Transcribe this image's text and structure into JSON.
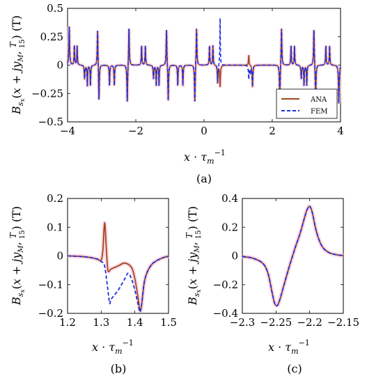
{
  "colors": {
    "ana": "#a0461e",
    "fem": "#1a2ee0",
    "ana_halo": "#f6c8d8"
  },
  "chart_data": [
    {
      "id": "a",
      "type": "line",
      "caption": "(a)",
      "xlabel": "x · τ_m^-1",
      "ylabel": "B_sx(x + jy_M, T/15) (T)",
      "xlim": [
        -4,
        4
      ],
      "ylim": [
        -0.5,
        0.5
      ],
      "xticks": [
        "-4",
        "-2",
        "0",
        "2",
        "4"
      ],
      "yticks": [
        "-0.5",
        "-0.25",
        "0",
        "0.25",
        "0.5"
      ],
      "legend": {
        "position": "bottom-right",
        "entries": [
          "ANA",
          "FEM"
        ]
      },
      "ana_spikes": [
        {
          "x": -3.95,
          "a": 0.34,
          "w": 0.012
        },
        {
          "x": -3.8,
          "a": 0.17,
          "w": 0.01
        },
        {
          "x": -3.72,
          "a": 0.17,
          "w": 0.01
        },
        {
          "x": -3.5,
          "a": -0.12,
          "w": 0.012
        },
        {
          "x": -3.42,
          "a": -0.18,
          "w": 0.01
        },
        {
          "x": -3.33,
          "a": -0.18,
          "w": 0.01
        },
        {
          "x": -3.12,
          "a": 0.33,
          "w": 0.012
        },
        {
          "x": -3.08,
          "a": -0.33,
          "w": 0.012
        },
        {
          "x": -2.77,
          "a": -0.18,
          "w": 0.01
        },
        {
          "x": -2.63,
          "a": -0.18,
          "w": 0.01
        },
        {
          "x": -2.25,
          "a": -0.34,
          "w": 0.012
        },
        {
          "x": -2.2,
          "a": 0.34,
          "w": 0.012
        },
        {
          "x": -1.83,
          "a": 0.17,
          "w": 0.01
        },
        {
          "x": -1.72,
          "a": 0.17,
          "w": 0.01
        },
        {
          "x": -1.48,
          "a": -0.12,
          "w": 0.012
        },
        {
          "x": -1.4,
          "a": -0.18,
          "w": 0.01
        },
        {
          "x": -1.32,
          "a": -0.18,
          "w": 0.01
        },
        {
          "x": -1.1,
          "a": 0.33,
          "w": 0.012
        },
        {
          "x": -1.05,
          "a": -0.33,
          "w": 0.012
        },
        {
          "x": -0.77,
          "a": -0.18,
          "w": 0.01
        },
        {
          "x": -0.62,
          "a": -0.18,
          "w": 0.01
        },
        {
          "x": -0.27,
          "a": -0.34,
          "w": 0.012
        },
        {
          "x": -0.22,
          "a": 0.34,
          "w": 0.012
        },
        {
          "x": 0.16,
          "a": 0.17,
          "w": 0.01
        },
        {
          "x": 0.26,
          "a": 0.17,
          "w": 0.01
        },
        {
          "x": 0.4,
          "a": -0.16,
          "w": 0.012
        },
        {
          "x": 0.47,
          "a": -0.19,
          "w": 0.012
        },
        {
          "x": 1.31,
          "a": 0.09,
          "w": 0.01
        },
        {
          "x": 1.42,
          "a": -0.19,
          "w": 0.012
        },
        {
          "x": 2.22,
          "a": -0.34,
          "w": 0.012
        },
        {
          "x": 2.27,
          "a": 0.34,
          "w": 0.012
        },
        {
          "x": 2.55,
          "a": 0.17,
          "w": 0.01
        },
        {
          "x": 2.65,
          "a": 0.17,
          "w": 0.01
        },
        {
          "x": 2.85,
          "a": -0.12,
          "w": 0.012
        },
        {
          "x": 2.93,
          "a": -0.18,
          "w": 0.01
        },
        {
          "x": 3.01,
          "a": -0.18,
          "w": 0.01
        },
        {
          "x": 3.22,
          "a": 0.33,
          "w": 0.012
        },
        {
          "x": 3.27,
          "a": -0.33,
          "w": 0.012
        },
        {
          "x": 3.57,
          "a": 0.17,
          "w": 0.01
        },
        {
          "x": 3.68,
          "a": 0.17,
          "w": 0.01
        },
        {
          "x": 3.95,
          "a": -0.34,
          "w": 0.012
        }
      ],
      "fem_spikes": [
        {
          "x": -3.95,
          "a": 0.34,
          "w": 0.012
        },
        {
          "x": -3.8,
          "a": 0.17,
          "w": 0.01
        },
        {
          "x": -3.72,
          "a": 0.17,
          "w": 0.01
        },
        {
          "x": -3.5,
          "a": -0.12,
          "w": 0.012
        },
        {
          "x": -3.42,
          "a": -0.18,
          "w": 0.01
        },
        {
          "x": -3.33,
          "a": -0.18,
          "w": 0.01
        },
        {
          "x": -3.12,
          "a": 0.33,
          "w": 0.012
        },
        {
          "x": -3.08,
          "a": -0.33,
          "w": 0.012
        },
        {
          "x": -2.77,
          "a": -0.18,
          "w": 0.01
        },
        {
          "x": -2.63,
          "a": -0.18,
          "w": 0.01
        },
        {
          "x": -2.25,
          "a": -0.34,
          "w": 0.012
        },
        {
          "x": -2.2,
          "a": 0.34,
          "w": 0.012
        },
        {
          "x": -1.83,
          "a": 0.17,
          "w": 0.01
        },
        {
          "x": -1.72,
          "a": 0.17,
          "w": 0.01
        },
        {
          "x": -1.48,
          "a": -0.12,
          "w": 0.012
        },
        {
          "x": -1.4,
          "a": -0.18,
          "w": 0.01
        },
        {
          "x": -1.32,
          "a": -0.18,
          "w": 0.01
        },
        {
          "x": -1.1,
          "a": 0.33,
          "w": 0.012
        },
        {
          "x": -1.05,
          "a": -0.33,
          "w": 0.012
        },
        {
          "x": -0.77,
          "a": -0.18,
          "w": 0.01
        },
        {
          "x": -0.62,
          "a": -0.18,
          "w": 0.01
        },
        {
          "x": -0.27,
          "a": -0.34,
          "w": 0.012
        },
        {
          "x": -0.22,
          "a": 0.34,
          "w": 0.012
        },
        {
          "x": 0.16,
          "a": 0.17,
          "w": 0.01
        },
        {
          "x": 0.26,
          "a": 0.17,
          "w": 0.01
        },
        {
          "x": 0.4,
          "a": -0.16,
          "w": 0.012
        },
        {
          "x": 0.47,
          "a": 0.42,
          "w": 0.008
        },
        {
          "x": 1.31,
          "a": -0.12,
          "w": 0.012
        },
        {
          "x": 1.36,
          "a": -0.07,
          "w": 0.012
        },
        {
          "x": 1.42,
          "a": -0.19,
          "w": 0.012
        },
        {
          "x": 2.22,
          "a": -0.34,
          "w": 0.012
        },
        {
          "x": 2.27,
          "a": 0.34,
          "w": 0.012
        },
        {
          "x": 2.55,
          "a": 0.17,
          "w": 0.01
        },
        {
          "x": 2.65,
          "a": 0.17,
          "w": 0.01
        },
        {
          "x": 2.85,
          "a": -0.12,
          "w": 0.012
        },
        {
          "x": 2.93,
          "a": -0.18,
          "w": 0.01
        },
        {
          "x": 3.01,
          "a": -0.18,
          "w": 0.01
        },
        {
          "x": 3.22,
          "a": 0.33,
          "w": 0.012
        },
        {
          "x": 3.27,
          "a": -0.33,
          "w": 0.012
        },
        {
          "x": 3.57,
          "a": 0.17,
          "w": 0.01
        },
        {
          "x": 3.68,
          "a": 0.17,
          "w": 0.01
        },
        {
          "x": 3.95,
          "a": -0.34,
          "w": 0.012
        }
      ]
    },
    {
      "id": "b",
      "type": "line",
      "caption": "(b)",
      "xlabel": "x · τ_m^-1",
      "ylabel": "B_sx(x + jy_M, T/15) (T)",
      "xlim": [
        1.2,
        1.5
      ],
      "ylim": [
        -0.2,
        0.2
      ],
      "xticks": [
        "1.2",
        "1.3",
        "1.4",
        "1.5"
      ],
      "yticks": [
        "-0.2",
        "-0.1",
        "0",
        "0.1",
        "0.2"
      ],
      "series": [
        {
          "name": "ANA",
          "x": [
            1.2,
            1.24,
            1.27,
            1.29,
            1.3,
            1.305,
            1.31,
            1.315,
            1.32,
            1.33,
            1.35,
            1.37,
            1.39,
            1.4,
            1.41,
            1.415,
            1.42,
            1.43,
            1.45,
            1.48,
            1.5
          ],
          "y": [
            0,
            -0.002,
            -0.006,
            -0.012,
            -0.015,
            0.02,
            0.115,
            0.03,
            -0.05,
            -0.045,
            -0.035,
            -0.025,
            -0.04,
            -0.08,
            -0.15,
            -0.19,
            -0.17,
            -0.08,
            -0.03,
            -0.008,
            -0.002
          ]
        },
        {
          "name": "FEM",
          "x": [
            1.2,
            1.24,
            1.27,
            1.29,
            1.3,
            1.31,
            1.32,
            1.325,
            1.33,
            1.35,
            1.37,
            1.38,
            1.39,
            1.4,
            1.41,
            1.415,
            1.42,
            1.43,
            1.45,
            1.48,
            1.5
          ],
          "y": [
            0,
            -0.002,
            -0.006,
            -0.012,
            -0.02,
            -0.035,
            -0.12,
            -0.165,
            -0.15,
            -0.12,
            -0.08,
            -0.06,
            -0.08,
            -0.12,
            -0.17,
            -0.195,
            -0.17,
            -0.08,
            -0.03,
            -0.008,
            -0.002
          ]
        }
      ]
    },
    {
      "id": "c",
      "type": "line",
      "caption": "(c)",
      "xlabel": "x · τ_m^-1",
      "ylabel": "B_sx(x + jy_M, T/15) (T)",
      "xlim": [
        -2.3,
        -2.15
      ],
      "ylim": [
        -0.4,
        0.4
      ],
      "xticks": [
        "-2.3",
        "-2.25",
        "-2.2",
        "-2.15"
      ],
      "yticks": [
        "-0.4",
        "-0.2",
        "0",
        "0.2",
        "0.4"
      ],
      "series": [
        {
          "name": "ANA",
          "x": [
            -2.3,
            -2.285,
            -2.27,
            -2.262,
            -2.256,
            -2.252,
            -2.248,
            -2.244,
            -2.238,
            -2.23,
            -2.222,
            -2.214,
            -2.208,
            -2.204,
            -2.2,
            -2.196,
            -2.19,
            -2.182,
            -2.172,
            -2.16,
            -2.15
          ],
          "y": [
            -0.005,
            -0.015,
            -0.05,
            -0.12,
            -0.25,
            -0.33,
            -0.345,
            -0.3,
            -0.2,
            -0.07,
            0.05,
            0.16,
            0.26,
            0.32,
            0.345,
            0.3,
            0.17,
            0.07,
            0.025,
            0.008,
            0.003
          ]
        },
        {
          "name": "FEM",
          "x": [
            -2.3,
            -2.285,
            -2.27,
            -2.262,
            -2.256,
            -2.252,
            -2.248,
            -2.244,
            -2.238,
            -2.23,
            -2.222,
            -2.214,
            -2.208,
            -2.204,
            -2.2,
            -2.196,
            -2.19,
            -2.182,
            -2.172,
            -2.16,
            -2.15
          ],
          "y": [
            -0.005,
            -0.015,
            -0.05,
            -0.12,
            -0.25,
            -0.33,
            -0.345,
            -0.3,
            -0.2,
            -0.07,
            0.05,
            0.16,
            0.26,
            0.32,
            0.345,
            0.3,
            0.17,
            0.07,
            0.025,
            0.008,
            0.003
          ]
        }
      ]
    }
  ]
}
